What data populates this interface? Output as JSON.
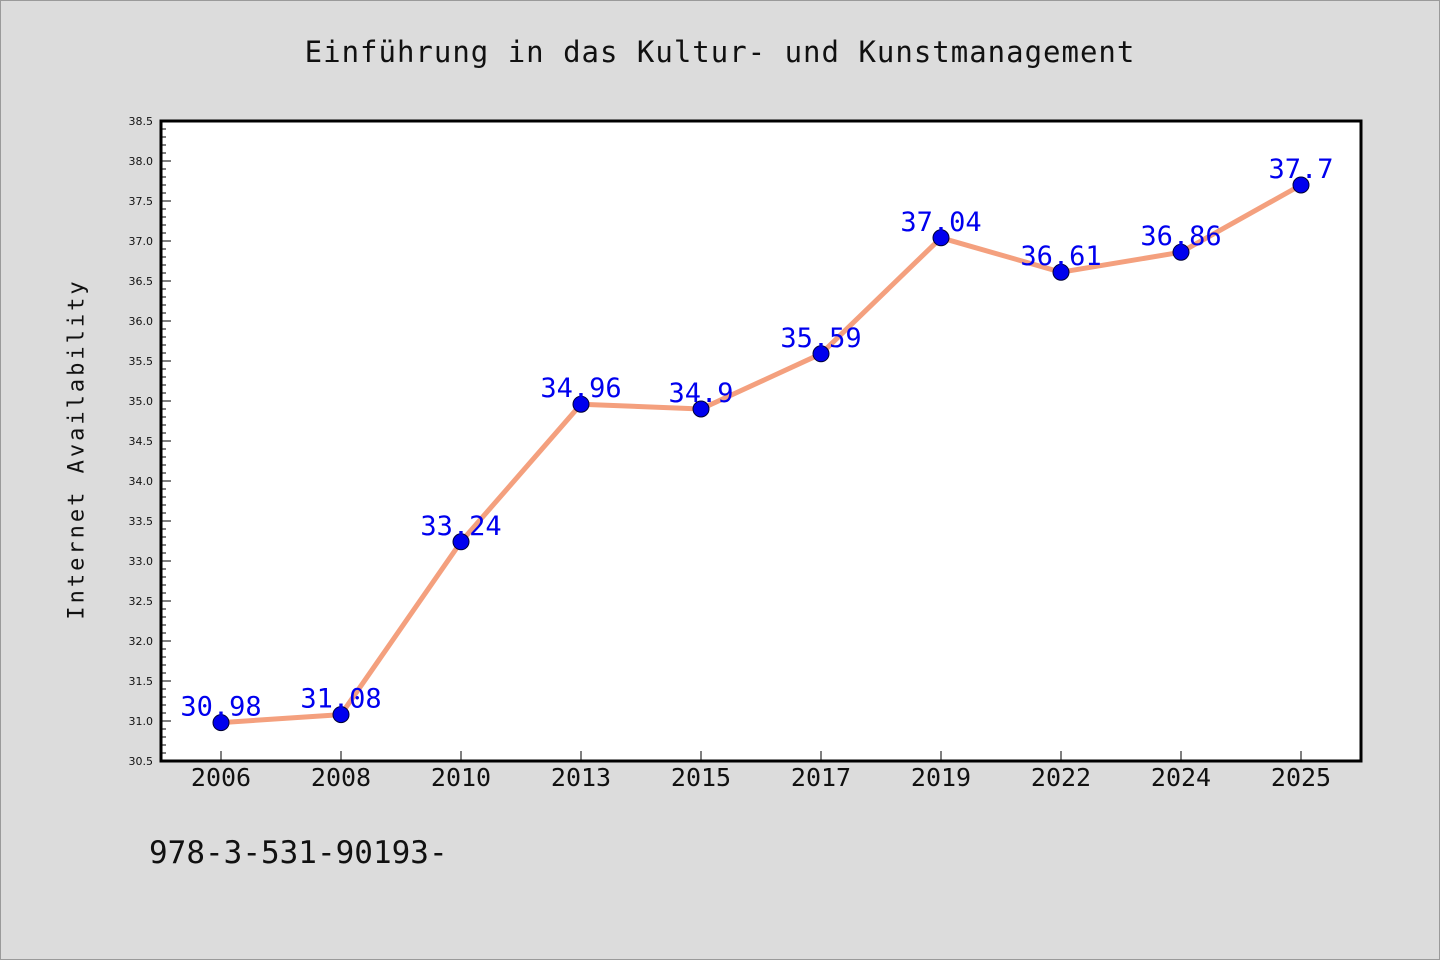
{
  "chart_data": {
    "type": "line",
    "title": "Einführung in das Kultur- und Kunstmanagement",
    "xlabel": "",
    "ylabel": "Internet Availability",
    "categories": [
      "2006",
      "2008",
      "2010",
      "2013",
      "2015",
      "2017",
      "2019",
      "2022",
      "2024",
      "2025"
    ],
    "series": [
      {
        "values": [
          30.98,
          31.08,
          33.24,
          34.96,
          34.9,
          35.59,
          37.04,
          36.61,
          36.86,
          37.7
        ],
        "labels": [
          "30.98",
          "31.08",
          "33.24",
          "34.96",
          "34.9",
          "35.59",
          "37.04",
          "36.61",
          "36.86",
          "37.7"
        ],
        "line_color": "#f4a07e",
        "marker_color": "#0000ee",
        "label_color": "#0000ee"
      }
    ],
    "ylim": [
      30.5,
      38.5
    ],
    "yticks": [
      "30.5",
      "31.0",
      "31.5",
      "32.0",
      "32.5",
      "33.0",
      "33.5",
      "34.0",
      "34.5",
      "35.0",
      "35.5",
      "36.0",
      "36.5",
      "37.0",
      "37.5",
      "38.0",
      "38.5"
    ],
    "grid": false,
    "legend": "none"
  },
  "footer": {
    "text": "978-3-531-90193-"
  },
  "colors": {
    "background": "#dcdcdc",
    "plot_background": "#ffffff",
    "axis": "#000000"
  }
}
